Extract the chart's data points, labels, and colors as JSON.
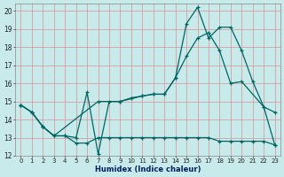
{
  "title": "",
  "xlabel": "Humidex (Indice chaleur)",
  "bg_color": "#c8eaea",
  "grid_color": "#d4a0a0",
  "line_color": "#006666",
  "xlim": [
    -0.5,
    23.5
  ],
  "ylim": [
    12,
    20.4
  ],
  "xticks": [
    0,
    1,
    2,
    3,
    4,
    5,
    6,
    7,
    8,
    9,
    10,
    11,
    12,
    13,
    14,
    15,
    16,
    17,
    18,
    19,
    20,
    21,
    22,
    23
  ],
  "yticks": [
    12,
    13,
    14,
    15,
    16,
    17,
    18,
    19,
    20
  ],
  "line1_x": [
    0,
    1,
    2,
    3,
    4,
    5,
    6,
    7,
    8,
    9,
    10,
    11,
    12,
    13,
    14,
    15,
    16,
    17,
    18,
    19,
    20,
    21,
    22,
    23
  ],
  "line1_y": [
    14.8,
    14.4,
    13.6,
    13.1,
    13.1,
    12.7,
    12.7,
    13.0,
    13.0,
    13.0,
    13.0,
    13.0,
    13.0,
    13.0,
    13.0,
    13.0,
    13.0,
    13.0,
    12.8,
    12.8,
    12.8,
    12.8,
    12.8,
    12.6
  ],
  "line2_x": [
    0,
    1,
    2,
    3,
    4,
    5,
    6,
    7,
    8,
    9,
    10,
    11,
    12,
    13,
    14,
    15,
    16,
    17,
    18,
    19,
    20,
    21,
    22,
    23
  ],
  "line2_y": [
    14.8,
    14.4,
    13.6,
    13.1,
    13.1,
    13.0,
    15.5,
    12.1,
    15.0,
    15.0,
    15.2,
    15.3,
    15.4,
    15.4,
    16.3,
    19.3,
    20.2,
    18.5,
    19.1,
    19.1,
    17.8,
    16.1,
    14.7,
    14.4
  ],
  "line3_x": [
    0,
    1,
    2,
    3,
    7,
    9,
    11,
    12,
    13,
    14,
    15,
    16,
    17,
    18,
    19,
    20,
    22,
    23
  ],
  "line3_y": [
    14.8,
    14.4,
    13.6,
    13.1,
    15.0,
    15.0,
    15.3,
    15.4,
    15.4,
    16.3,
    17.5,
    18.5,
    18.8,
    17.8,
    16.0,
    16.1,
    14.7,
    12.6
  ]
}
